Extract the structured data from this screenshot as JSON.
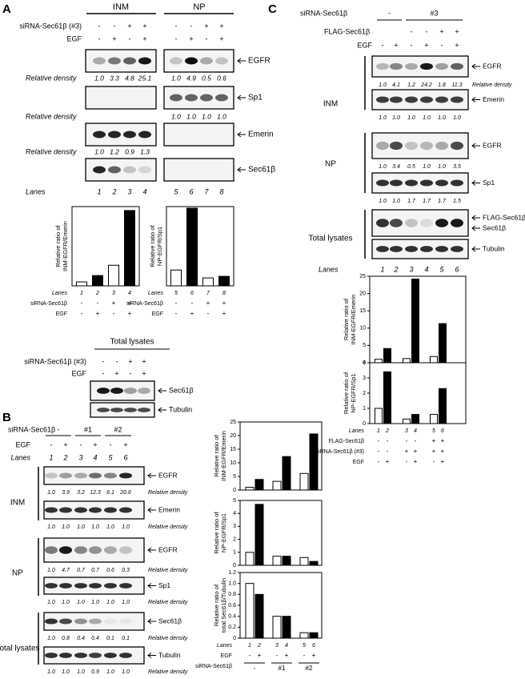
{
  "panels": {
    "A": {
      "label": "A",
      "groups": [
        "INM",
        "NP"
      ],
      "treatments": [
        {
          "name": "siRNA-Sec61β (#3)",
          "signs": [
            "-",
            "-",
            "+",
            "+",
            "-",
            "-",
            "+",
            "+"
          ]
        },
        {
          "name": "EGF",
          "signs": [
            "-",
            "+",
            "-",
            "+",
            "-",
            "+",
            "-",
            "+"
          ]
        }
      ],
      "blots": [
        "EGFR",
        "Sp1",
        "Emerin",
        "Sec61β"
      ],
      "densities": [
        {
          "label": "Relative density",
          "values": [
            "1.0",
            "3.3",
            "4.8",
            "25.1",
            "1.0",
            "4.9",
            "0.5",
            "0.6"
          ]
        },
        {
          "label": "Relative density",
          "values": [
            "1.0",
            "1.0",
            "1.0",
            "1.0"
          ]
        },
        {
          "label": "Relative density",
          "values": [
            "1.0",
            "1.2",
            "0.9",
            "1.3"
          ]
        }
      ],
      "lanes_label": "Lanes",
      "lanes": [
        "1",
        "2",
        "3",
        "4",
        "5",
        "6",
        "7",
        "8"
      ],
      "total_lysates": {
        "title": "Total lysates",
        "treatments": [
          {
            "name": "siRNA-Sec61β (#3)",
            "signs": [
              "-",
              "-",
              "+",
              "+"
            ]
          },
          {
            "name": "EGF",
            "signs": [
              "-",
              "+",
              "-",
              "+"
            ]
          }
        ],
        "blots": [
          "Sec61β",
          "Tubulin"
        ]
      }
    },
    "B": {
      "label": "B",
      "treatments": [
        {
          "name": "siRNA-Sec61β",
          "groups": [
            "-",
            "#1",
            "#2"
          ]
        },
        {
          "name": "EGF",
          "signs": [
            "-",
            "+",
            "-",
            "+",
            "-",
            "+"
          ]
        }
      ],
      "lanes_label": "Lanes",
      "lanes": [
        "1",
        "2",
        "3",
        "4",
        "5",
        "6"
      ],
      "density_label": "Relative density",
      "sections": [
        {
          "name": "INM",
          "blots": [
            {
              "name": "EGFR",
              "density": [
                "1.0",
                "3.9",
                "3.2",
                "12.3",
                "6.1",
                "20.6"
              ]
            },
            {
              "name": "Emerin",
              "density": [
                "1.0",
                "1.0",
                "1.0",
                "1.0",
                "1.0",
                "1.0"
              ]
            }
          ]
        },
        {
          "name": "NP",
          "blots": [
            {
              "name": "EGFR",
              "density": [
                "1.0",
                "4.7",
                "0.7",
                "0.7",
                "0.6",
                "0.3"
              ]
            },
            {
              "name": "Sp1",
              "density": [
                "1.0",
                "1.0",
                "1.0",
                "1.0",
                "1.0",
                "1.0"
              ]
            }
          ]
        },
        {
          "name": "Total lysates",
          "blots": [
            {
              "name": "Sec61β",
              "density": [
                "1.0",
                "0.8",
                "0.4",
                "0.4",
                "0.1",
                "0.1"
              ]
            },
            {
              "name": "Tubulin",
              "density": [
                "1.0",
                "1.0",
                "1.0",
                "0.9",
                "1.0",
                "1.0"
              ]
            }
          ]
        }
      ]
    },
    "C": {
      "label": "C",
      "treatments": [
        {
          "name": "siRNA-Sec61β",
          "groups": [
            "-",
            "#3"
          ]
        },
        {
          "name": "FLAG-Sec61β",
          "signs": [
            "-",
            "-",
            "+",
            "+"
          ]
        },
        {
          "name": "EGF",
          "signs": [
            "-",
            "+",
            "-",
            "+",
            "-",
            "+"
          ]
        }
      ],
      "density_label": "Relative density",
      "lanes_label": "Lanes",
      "lanes": [
        "1",
        "2",
        "3",
        "4",
        "5",
        "6"
      ],
      "sections": [
        {
          "name": "INM",
          "blots": [
            {
              "name": "EGFR",
              "density": [
                "1.0",
                "4.1",
                "1.2",
                "24.2",
                "1.8",
                "11.3"
              ]
            },
            {
              "name": "Emerin",
              "density": [
                "1.0",
                "1.0",
                "1.0",
                "1.0",
                "1.0",
                "1.0"
              ]
            }
          ]
        },
        {
          "name": "NP",
          "blots": [
            {
              "name": "EGFR",
              "density": [
                "1.0",
                "3.4",
                "0.5",
                "1.0",
                "1.0",
                "3.5"
              ]
            },
            {
              "name": "Sp1",
              "density": [
                "1.0",
                "1.0",
                "1.7",
                "1.7",
                "1.7",
                "1.5"
              ]
            }
          ]
        },
        {
          "name": "Total lysates",
          "blots": [
            {
              "name": "FLAG-Sec61β"
            },
            {
              "name": "Sec61β"
            },
            {
              "name": "Tubulin"
            }
          ]
        }
      ]
    }
  },
  "chart_data": [
    {
      "type": "bar",
      "ylabel": [
        "Relative ratio of",
        "INM-EGFR/Emerin"
      ],
      "categories": [
        "1",
        "2",
        "3",
        "4"
      ],
      "values": [
        1,
        2.6,
        5.2,
        19
      ],
      "colors": [
        "#ffffff",
        "#000000",
        "#ffffff",
        "#000000"
      ],
      "ylim": [
        0,
        20
      ],
      "x_label": "Lanes",
      "x_rows": [
        {
          "name": "siRNA-Sec61β",
          "signs": [
            "-",
            "-",
            "+",
            "+"
          ]
        },
        {
          "name": "EGF",
          "signs": [
            "-",
            "+",
            "-",
            "+"
          ]
        }
      ]
    },
    {
      "type": "bar",
      "ylabel": [
        "Relative ratio of",
        "NP-EGFR/Sp1"
      ],
      "categories": [
        "5",
        "6",
        "7",
        "8"
      ],
      "values": [
        1,
        4.9,
        0.5,
        0.6
      ],
      "colors": [
        "#ffffff",
        "#000000",
        "#ffffff",
        "#000000"
      ],
      "ylim": [
        0,
        5
      ],
      "x_label": "Lanes",
      "x_rows": [
        {
          "name": "siRNA-Sec61β",
          "signs": [
            "-",
            "-",
            "+",
            "+"
          ]
        },
        {
          "name": "EGF",
          "signs": [
            "-",
            "+",
            "-",
            "+"
          ]
        }
      ]
    },
    {
      "type": "bar",
      "ylabel": [
        "Relative ratio of",
        "INM-EGFR/Emerin"
      ],
      "values": [
        1,
        3.9,
        3.2,
        12.3,
        6.1,
        20.6
      ],
      "colors": [
        "#ffffff",
        "#000000",
        "#ffffff",
        "#000000",
        "#ffffff",
        "#000000"
      ],
      "ylim": [
        0,
        25
      ],
      "yticks": [
        0,
        5,
        10,
        15,
        20,
        25
      ]
    },
    {
      "type": "bar",
      "ylabel": [
        "Relative ratio of",
        "NP-EGFR/Sp1"
      ],
      "values": [
        1,
        4.7,
        0.7,
        0.7,
        0.6,
        0.3
      ],
      "colors": [
        "#ffffff",
        "#000000",
        "#ffffff",
        "#000000",
        "#ffffff",
        "#000000"
      ],
      "ylim": [
        0,
        5
      ],
      "yticks": [
        0,
        1,
        2,
        3,
        4,
        5
      ]
    },
    {
      "type": "bar",
      "ylabel": [
        "Relative ratio of",
        "total Sec61β/Tubulin"
      ],
      "categories": [
        "1",
        "2",
        "3",
        "4",
        "5",
        "6"
      ],
      "values": [
        1,
        0.8,
        0.4,
        0.4,
        0.1,
        0.1
      ],
      "colors": [
        "#ffffff",
        "#000000",
        "#ffffff",
        "#000000",
        "#ffffff",
        "#000000"
      ],
      "ylim": [
        0,
        1.2
      ],
      "yticks": [
        0,
        0.2,
        0.4,
        0.6,
        0.8,
        {
          "value": 1,
          "label": "1.0"
        },
        1.2
      ],
      "x_label": "Lanes",
      "x_rows": [
        {
          "name": "EGF",
          "signs": [
            "-",
            "+",
            "-",
            "+",
            "-",
            "+"
          ]
        },
        {
          "name": "siRNA-Sec61β",
          "groups": [
            "-",
            "#1",
            "#2"
          ]
        }
      ]
    },
    {
      "type": "bar",
      "ylabel": [
        "Relative ratio of",
        "INM-EGFR/Emerin"
      ],
      "values": [
        1,
        4.1,
        1.2,
        24.2,
        1.8,
        11.3
      ],
      "colors": [
        "#ffffff",
        "#000000",
        "#ffffff",
        "#000000",
        "#ffffff",
        "#000000"
      ],
      "ylim": [
        0,
        25
      ],
      "yticks": [
        0,
        5,
        10,
        15,
        20,
        25
      ]
    },
    {
      "type": "bar",
      "ylabel": [
        "Relative ratio of",
        "NP-EGFR/Sp1"
      ],
      "categories": [
        "1",
        "2",
        "3",
        "4",
        "5",
        "6"
      ],
      "values": [
        1,
        3.4,
        0.3,
        0.6,
        0.6,
        2.3
      ],
      "colors": [
        "#ffffff",
        "#000000",
        "#ffffff",
        "#000000",
        "#ffffff",
        "#000000"
      ],
      "ylim": [
        0,
        4
      ],
      "yticks": [
        0,
        1,
        2,
        3,
        4
      ],
      "x_label": "Lanes",
      "x_rows": [
        {
          "name": "FLAG-Sec61β",
          "signs": [
            "-",
            "-",
            "-",
            "-",
            "+",
            "+"
          ]
        },
        {
          "name": "siRNA-Sec61β (#3)",
          "signs": [
            "-",
            "-",
            "+",
            "+",
            "+",
            "+"
          ]
        },
        {
          "name": "EGF",
          "signs": [
            "-",
            "+",
            "-",
            "+",
            "-",
            "+"
          ]
        }
      ]
    }
  ]
}
